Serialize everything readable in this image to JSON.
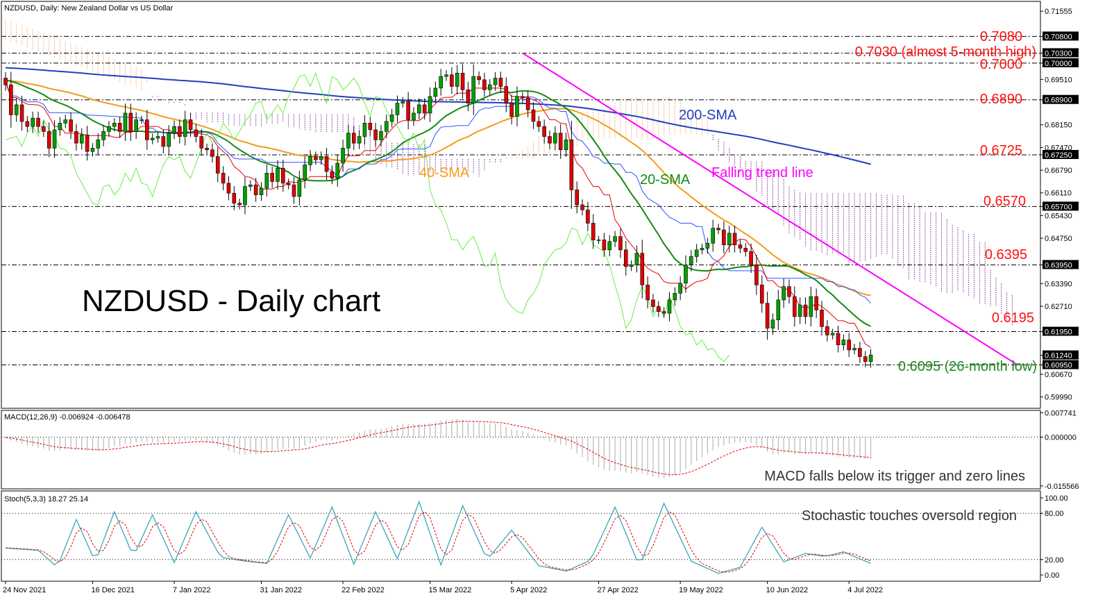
{
  "chart_title": "NZDUSD, Daily:  New Zealand Dollar vs US Dollar",
  "big_title": "NZDUSD - Daily chart",
  "colors": {
    "bull": "#00a000",
    "bear": "#e00000",
    "sma200": "#1f3fbf",
    "sma40": "#f59a1c",
    "sma20": "#138a13",
    "tenkan": "#e00000",
    "kijun": "#3050ff",
    "chikou": "#66ee44",
    "cloud_bear": "#7a2a9a",
    "cloud_bull": "#f3a46a",
    "trendline": "#ff00ff",
    "annotation_red": "#ff1010",
    "annotation_green": "#1a8a1a",
    "stoch_main": "#3aa6b5",
    "stoch_signal": "#e00000"
  },
  "chart_data": [
    {
      "type": "candlestick",
      "panel": "price",
      "ylim": [
        0.5965,
        0.7185
      ],
      "y_ticks": [
        "0.71555",
        "0.70800",
        "0.70300",
        "0.70000",
        "0.69510",
        "0.68900",
        "0.68150",
        "0.67470",
        "0.67250",
        "0.66790",
        "0.66110",
        "0.65700",
        "0.65430",
        "0.64750",
        "0.63950",
        "0.63390",
        "0.62710",
        "0.61950",
        "0.61240",
        "0.60950",
        "0.60670",
        "0.59990"
      ],
      "x_labels": [
        "24 Nov 2021",
        "16 Dec 2021",
        "7 Jan 2022",
        "31 Jan 2022",
        "22 Feb 2022",
        "15 Mar 2022",
        "5 Apr 2022",
        "27 Apr 2022",
        "19 May 2022",
        "10 Jun 2022",
        "4 Jul 2022"
      ],
      "x_label_bars": [
        0,
        16,
        31,
        47,
        62,
        78,
        93,
        109,
        124,
        140,
        155
      ],
      "closes": [
        0.6935,
        0.6845,
        0.6875,
        0.6825,
        0.681,
        0.6835,
        0.681,
        0.6795,
        0.6745,
        0.68,
        0.682,
        0.683,
        0.6795,
        0.676,
        0.6785,
        0.6735,
        0.6745,
        0.677,
        0.6795,
        0.681,
        0.682,
        0.6795,
        0.685,
        0.6795,
        0.683,
        0.683,
        0.677,
        0.6775,
        0.678,
        0.675,
        0.679,
        0.681,
        0.678,
        0.683,
        0.68,
        0.678,
        0.6745,
        0.674,
        0.672,
        0.667,
        0.664,
        0.661,
        0.658,
        0.6575,
        0.663,
        0.6635,
        0.6605,
        0.6625,
        0.667,
        0.6645,
        0.6685,
        0.664,
        0.6635,
        0.66,
        0.665,
        0.6695,
        0.672,
        0.671,
        0.672,
        0.6675,
        0.6655,
        0.67,
        0.6745,
        0.679,
        0.676,
        0.678,
        0.682,
        0.68,
        0.677,
        0.6795,
        0.6825,
        0.6845,
        0.688,
        0.6885,
        0.683,
        0.685,
        0.6875,
        0.685,
        0.69,
        0.6925,
        0.696,
        0.6965,
        0.693,
        0.697,
        0.692,
        0.688,
        0.696,
        0.695,
        0.692,
        0.6935,
        0.6955,
        0.693,
        0.688,
        0.684,
        0.69,
        0.6895,
        0.686,
        0.6825,
        0.681,
        0.678,
        0.676,
        0.679,
        0.674,
        0.677,
        0.662,
        0.6575,
        0.656,
        0.652,
        0.647,
        0.647,
        0.644,
        0.6465,
        0.648,
        0.644,
        0.639,
        0.6395,
        0.643,
        0.6335,
        0.629,
        0.627,
        0.6255,
        0.625,
        0.629,
        0.631,
        0.634,
        0.6395,
        0.642,
        0.644,
        0.6445,
        0.646,
        0.6505,
        0.65,
        0.6455,
        0.649,
        0.6455,
        0.6445,
        0.6435,
        0.6395,
        0.6335,
        0.628,
        0.6205,
        0.623,
        0.629,
        0.633,
        0.63,
        0.624,
        0.6275,
        0.624,
        0.63,
        0.626,
        0.621,
        0.6185,
        0.619,
        0.6155,
        0.617,
        0.614,
        0.6145,
        0.612,
        0.6105,
        0.6125
      ],
      "levels": [
        {
          "label": "0.7080",
          "value": 0.708,
          "box": "0.70800"
        },
        {
          "label": "0.7030 (almost 5-month high)",
          "value": 0.703,
          "box": "0.70300"
        },
        {
          "label": "0.7000",
          "value": 0.7,
          "box": "0.70000"
        },
        {
          "label": "0.6890",
          "value": 0.689,
          "box": "0.68900"
        },
        {
          "label": "0.6725",
          "value": 0.6725,
          "box": "0.67250"
        },
        {
          "label": "0.6570",
          "value": 0.657,
          "box": "0.65700"
        },
        {
          "label": "0.6395",
          "value": 0.6395,
          "box": "0.63950"
        },
        {
          "label": "0.6195",
          "value": 0.6195,
          "box": "0.61950"
        },
        {
          "label": "0.6095 (26-month low)",
          "value": 0.6095,
          "box": "0.60950"
        }
      ],
      "current_price_box": "0.61240",
      "annotations": {
        "sma200": "200-SMA",
        "sma40": "40-SMA",
        "sma20": "20-SMA",
        "trendline": "Falling trend line"
      }
    },
    {
      "type": "histogram",
      "panel": "macd",
      "label": "MACD(12,26,9) -0.006924 -0.006478",
      "ylim": [
        -0.0165,
        0.0085
      ],
      "y_ticks": [
        "0.007741",
        "0.000000",
        "-0.015566"
      ],
      "annotation": "MACD falls below its trigger and zero lines"
    },
    {
      "type": "line",
      "panel": "stochastic",
      "label": "Stoch(5,3,3) 18.27 25.14",
      "ylim": [
        0,
        100
      ],
      "y_ticks": [
        "100.00",
        "80.00",
        "20.00",
        "0.00"
      ],
      "annotation": "Stochastic touches oversold region",
      "cycle_peaks": [
        6,
        13,
        20,
        27,
        35,
        44,
        52,
        60,
        68,
        76,
        84,
        93,
        103,
        112,
        121,
        131,
        139,
        147,
        154
      ],
      "cycle_levels": [
        32,
        72,
        82,
        78,
        82,
        18,
        78,
        88,
        82,
        95,
        90,
        58,
        5,
        88,
        93,
        2,
        62,
        28,
        30
      ]
    }
  ]
}
